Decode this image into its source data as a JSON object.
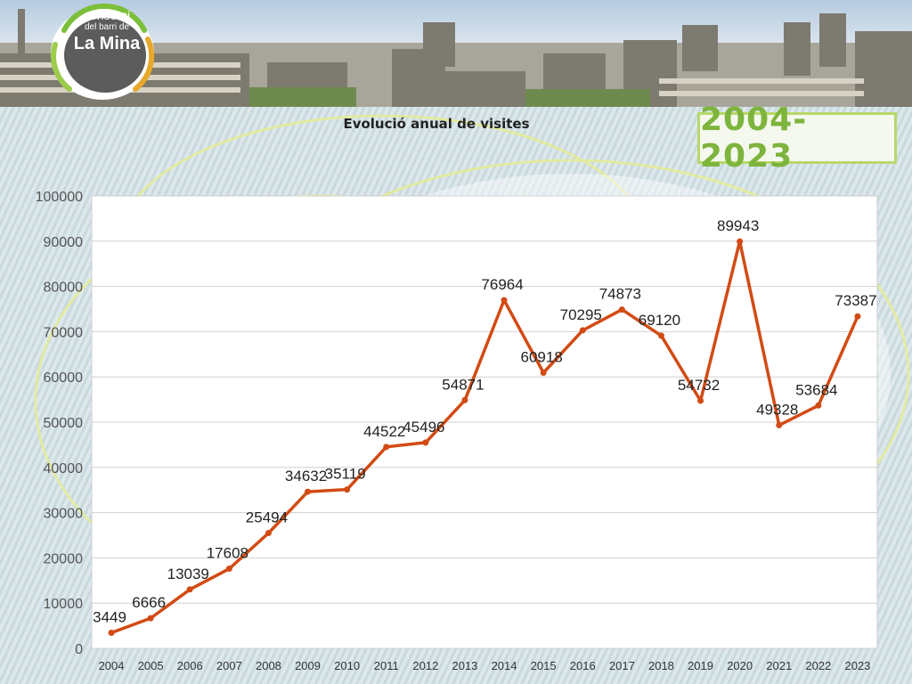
{
  "logo": {
    "line1": "consorci",
    "line2": "del barri de",
    "line3": "La Mina"
  },
  "year_range_badge": "2004-2023",
  "colors": {
    "line": "#d24b14",
    "badge_border": "#b8d86a",
    "badge_text": "#7db43c"
  },
  "chart_data": {
    "type": "line",
    "title": "Evolució anual de visites",
    "xlabel": "",
    "ylabel": "",
    "categories": [
      "2004",
      "2005",
      "2006",
      "2007",
      "2008",
      "2009",
      "2010",
      "2011",
      "2012",
      "2013",
      "2014",
      "2015",
      "2016",
      "2017",
      "2018",
      "2019",
      "2020",
      "2021",
      "2022",
      "2023"
    ],
    "values": [
      3449,
      6666,
      13039,
      17608,
      25494,
      34632,
      35119,
      44522,
      45496,
      54871,
      76964,
      60918,
      70295,
      74873,
      69120,
      54732,
      89943,
      49328,
      53684,
      73387
    ],
    "ylim": [
      0,
      100000
    ],
    "yticks": [
      0,
      10000,
      20000,
      30000,
      40000,
      50000,
      60000,
      70000,
      80000,
      90000,
      100000
    ],
    "grid": true,
    "data_labels": true,
    "legend": "none"
  }
}
